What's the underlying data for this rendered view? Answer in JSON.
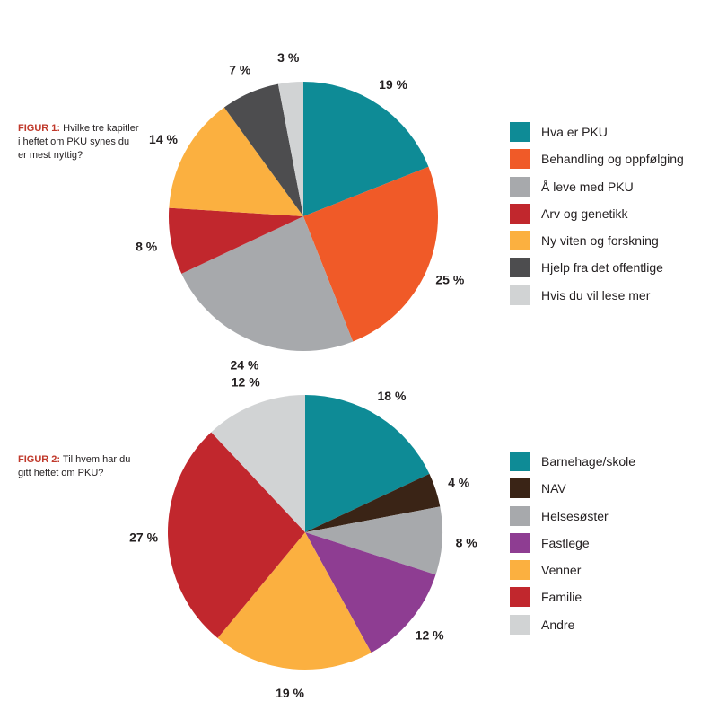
{
  "chart_data": [
    {
      "type": "pie",
      "caption_label": "FIGUR 1:",
      "caption_text": "Hvilke tre kapitler i heftet om PKU synes du er mest nyttig?",
      "categories": [
        "Hva er PKU",
        "Behandling og oppfølging",
        "Å leve med PKU",
        "Arv og genetikk",
        "Ny viten og forskning",
        "Hjelp fra det offentlige",
        "Hvis du vil lese mer"
      ],
      "values": [
        19,
        25,
        24,
        8,
        14,
        7,
        3
      ],
      "value_labels": [
        "19 %",
        "25 %",
        "24 %",
        "8 %",
        "14 %",
        "7 %",
        "3 %"
      ],
      "colors": [
        "#0e8b96",
        "#f05a28",
        "#a7a9ac",
        "#c1272d",
        "#fbb040",
        "#4d4d4f",
        "#d1d3d4"
      ]
    },
    {
      "type": "pie",
      "caption_label": "FIGUR 2:",
      "caption_text": "Til hvem har du gitt heftet om PKU?",
      "categories": [
        "Barnehage/skole",
        "NAV",
        "Helsesøster",
        "Fastlege",
        "Venner",
        "Familie",
        "Andre"
      ],
      "values": [
        18,
        4,
        8,
        12,
        19,
        27,
        12
      ],
      "value_labels": [
        "18 %",
        "4 %",
        "8 %",
        "12 %",
        "19 %",
        "27 %",
        "12 %"
      ],
      "colors": [
        "#0e8b96",
        "#3a2416",
        "#a7a9ac",
        "#8e3d92",
        "#fbb040",
        "#c1272d",
        "#d1d3d4"
      ]
    }
  ]
}
